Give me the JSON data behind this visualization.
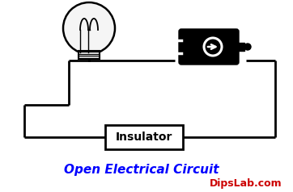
{
  "bg_color": "#ffffff",
  "line_color": "#000000",
  "title_text": "Open Electrical Circuit",
  "title_color": "#0000ff",
  "watermark_text": "DipsLab.com",
  "watermark_color": "#cc0000",
  "figsize": [
    3.62,
    2.38
  ],
  "dpi": 100
}
